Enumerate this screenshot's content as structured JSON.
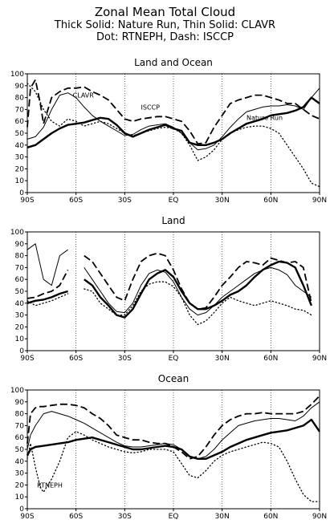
{
  "figure": {
    "title": "Zonal Mean Total Cloud",
    "subtitle1": "Thick Solid: Nature Run, Thin Solid: CLAVR",
    "subtitle2": "Dot: RTNEPH, Dash: ISCCP"
  },
  "chart_data": [
    {
      "type": "line",
      "title": "Land and Ocean",
      "xlim": [
        -90,
        90
      ],
      "ylim": [
        0,
        100
      ],
      "x_ticks": [
        -90,
        -60,
        -30,
        0,
        30,
        60,
        90
      ],
      "x_tick_labels": [
        "90S",
        "60S",
        "30S",
        "EQ",
        "30N",
        "60N",
        "90N"
      ],
      "y_ticks": [
        0,
        10,
        20,
        30,
        40,
        50,
        60,
        70,
        80,
        90,
        100
      ],
      "annotations": [
        {
          "text": "CLAVR",
          "x": -62,
          "y": 80
        },
        {
          "text": "ISCCP",
          "x": -20,
          "y": 70
        },
        {
          "text": "Nature Run",
          "x": 45,
          "y": 61
        }
      ],
      "series": [
        {
          "style": "thick",
          "x": [
            -90,
            -85,
            -80,
            -75,
            -70,
            -65,
            -60,
            -55,
            -50,
            -45,
            -40,
            -35,
            -30,
            -25,
            -20,
            -15,
            -10,
            -5,
            0,
            5,
            10,
            15,
            20,
            25,
            30,
            35,
            40,
            45,
            50,
            55,
            60,
            65,
            70,
            75,
            80,
            85,
            90
          ],
          "y": [
            38,
            40,
            45,
            50,
            54,
            57,
            58,
            59,
            61,
            63,
            62,
            57,
            50,
            47,
            50,
            53,
            55,
            57,
            54,
            52,
            42,
            40,
            40,
            42,
            45,
            50,
            54,
            58,
            60,
            62,
            65,
            66,
            67,
            69,
            72,
            80,
            75
          ]
        },
        {
          "style": "thin",
          "x": [
            -90,
            -85,
            -80,
            -75,
            -70,
            -65,
            -60,
            -55,
            -50,
            -45,
            -40,
            -35,
            -30,
            -25,
            -20,
            -15,
            -10,
            -5,
            0,
            5,
            10,
            15,
            20,
            25,
            30,
            35,
            40,
            45,
            50,
            55,
            60,
            65,
            70,
            75,
            80,
            85,
            90
          ],
          "y": [
            45,
            47,
            55,
            70,
            82,
            84,
            80,
            72,
            65,
            60,
            56,
            52,
            48,
            49,
            53,
            56,
            57,
            58,
            55,
            50,
            42,
            36,
            37,
            40,
            47,
            55,
            62,
            68,
            70,
            72,
            73,
            73,
            74,
            73,
            70,
            80,
            88
          ]
        },
        {
          "style": "dot",
          "x": [
            -90,
            -85,
            -80,
            -75,
            -70,
            -65,
            -60,
            -55,
            -50,
            -45,
            -40,
            -35,
            -30,
            -25,
            -20,
            -15,
            -10,
            -5,
            0,
            5,
            10,
            15,
            20,
            25,
            30,
            35,
            40,
            45,
            50,
            55,
            60,
            65,
            70,
            75,
            80,
            85,
            90
          ],
          "y": [
            92,
            85,
            70,
            60,
            56,
            62,
            60,
            56,
            58,
            60,
            58,
            54,
            50,
            48,
            50,
            52,
            54,
            55,
            54,
            50,
            40,
            27,
            30,
            36,
            45,
            50,
            53,
            55,
            56,
            56,
            54,
            50,
            40,
            30,
            20,
            8,
            5
          ]
        },
        {
          "style": "dash",
          "x": [
            -90,
            -88,
            -85,
            -82,
            -80,
            -75,
            -70,
            -65,
            -60,
            -55,
            -50,
            -45,
            -40,
            -35,
            -30,
            -25,
            -20,
            -15,
            -10,
            -5,
            0,
            5,
            10,
            15,
            20,
            25,
            30,
            35,
            40,
            45,
            50,
            55,
            60,
            65,
            70,
            75,
            80,
            85,
            90
          ],
          "y": [
            55,
            88,
            95,
            75,
            58,
            80,
            85,
            88,
            88,
            89,
            85,
            82,
            78,
            70,
            62,
            60,
            62,
            63,
            64,
            64,
            62,
            60,
            52,
            41,
            42,
            55,
            65,
            75,
            78,
            80,
            82,
            82,
            80,
            78,
            75,
            75,
            70,
            65,
            62
          ]
        }
      ]
    },
    {
      "type": "line",
      "title": "Land",
      "xlim": [
        -90,
        90
      ],
      "ylim": [
        0,
        100
      ],
      "x_ticks": [
        -90,
        -60,
        -30,
        0,
        30,
        60,
        90
      ],
      "x_tick_labels": [
        "90S",
        "60S",
        "30S",
        "EQ",
        "30N",
        "60N",
        "90N"
      ],
      "y_ticks": [
        0,
        10,
        20,
        30,
        40,
        50,
        60,
        70,
        80,
        90,
        100
      ],
      "annotations": [],
      "series": [
        {
          "style": "thick",
          "x": [
            -90,
            -85,
            -80,
            -75,
            -70,
            -65,
            null,
            -55,
            -50,
            -45,
            -40,
            -35,
            -30,
            -25,
            -20,
            -15,
            -10,
            -5,
            0,
            5,
            10,
            15,
            20,
            25,
            30,
            35,
            40,
            45,
            50,
            55,
            60,
            65,
            70,
            75,
            80,
            85
          ],
          "y": [
            40,
            42,
            43,
            45,
            48,
            50,
            null,
            60,
            55,
            45,
            38,
            30,
            28,
            35,
            48,
            60,
            65,
            68,
            62,
            50,
            40,
            35,
            35,
            38,
            42,
            47,
            50,
            55,
            62,
            68,
            72,
            75,
            74,
            70,
            55,
            38
          ]
        },
        {
          "style": "thin",
          "x": [
            -90,
            -85,
            -80,
            -75,
            -70,
            -65,
            null,
            -55,
            -50,
            -45,
            -40,
            -35,
            -30,
            -25,
            -20,
            -15,
            -10,
            -5,
            0,
            5,
            10,
            15,
            20,
            25,
            30,
            35,
            40,
            45,
            50,
            55,
            60,
            65,
            70,
            75,
            80,
            85
          ],
          "y": [
            85,
            90,
            60,
            55,
            80,
            85,
            null,
            70,
            60,
            50,
            40,
            33,
            32,
            40,
            55,
            65,
            68,
            66,
            58,
            45,
            35,
            30,
            32,
            38,
            45,
            50,
            55,
            60,
            65,
            68,
            70,
            68,
            64,
            55,
            50,
            45
          ]
        },
        {
          "style": "dot",
          "x": [
            -90,
            -85,
            -80,
            -75,
            -70,
            -65,
            null,
            -55,
            -50,
            -45,
            -40,
            -35,
            -30,
            -25,
            -20,
            -15,
            -10,
            -5,
            0,
            5,
            10,
            15,
            20,
            25,
            30,
            35,
            40,
            45,
            50,
            55,
            60,
            65,
            70,
            75,
            80,
            85
          ],
          "y": [
            42,
            38,
            40,
            42,
            45,
            48,
            null,
            52,
            50,
            40,
            35,
            30,
            30,
            38,
            50,
            56,
            58,
            58,
            54,
            45,
            30,
            22,
            25,
            32,
            40,
            45,
            42,
            40,
            38,
            40,
            42,
            40,
            38,
            35,
            34,
            30
          ]
        },
        {
          "style": "dash",
          "x": [
            -90,
            -85,
            -80,
            -75,
            -70,
            -65,
            null,
            -55,
            -50,
            -45,
            -40,
            -35,
            -30,
            -25,
            -20,
            -15,
            -10,
            -5,
            0,
            5,
            10,
            15,
            20,
            25,
            30,
            35,
            40,
            45,
            50,
            55,
            60,
            65,
            70,
            75,
            80,
            85
          ],
          "y": [
            44,
            45,
            48,
            50,
            55,
            68,
            null,
            80,
            75,
            65,
            55,
            45,
            42,
            60,
            75,
            80,
            82,
            80,
            68,
            52,
            40,
            35,
            36,
            45,
            55,
            62,
            70,
            75,
            74,
            72,
            78,
            76,
            74,
            75,
            70,
            40
          ]
        }
      ]
    },
    {
      "type": "line",
      "title": "Ocean",
      "xlim": [
        -90,
        90
      ],
      "ylim": [
        0,
        100
      ],
      "x_ticks": [
        -90,
        -60,
        -30,
        0,
        30,
        60,
        90
      ],
      "x_tick_labels": [
        "90S",
        "60S",
        "30S",
        "EQ",
        "30N",
        "60N",
        "90N"
      ],
      "y_ticks": [
        0,
        10,
        20,
        30,
        40,
        50,
        60,
        70,
        80,
        90,
        100
      ],
      "annotations": [
        {
          "text": "RTNEPH",
          "x": -84,
          "y": 18
        }
      ],
      "series": [
        {
          "style": "thick",
          "x": [
            -90,
            -88,
            -85,
            -80,
            -75,
            -70,
            -65,
            -60,
            -55,
            -50,
            -45,
            -40,
            -35,
            -30,
            -25,
            -20,
            -15,
            -10,
            -5,
            0,
            5,
            10,
            15,
            20,
            25,
            30,
            35,
            40,
            45,
            50,
            55,
            60,
            65,
            70,
            75,
            80,
            85,
            90
          ],
          "y": [
            45,
            50,
            52,
            53,
            54,
            55,
            56,
            58,
            59,
            60,
            58,
            56,
            54,
            52,
            50,
            50,
            51,
            52,
            53,
            52,
            50,
            44,
            42,
            42,
            45,
            48,
            52,
            55,
            58,
            60,
            62,
            64,
            65,
            66,
            68,
            70,
            75,
            65
          ]
        },
        {
          "style": "thin",
          "x": [
            -90,
            -88,
            -85,
            -80,
            -75,
            -70,
            -65,
            -60,
            -55,
            -50,
            -45,
            -40,
            -35,
            -30,
            -25,
            -20,
            -15,
            -10,
            -5,
            0,
            5,
            10,
            15,
            20,
            25,
            30,
            35,
            40,
            45,
            50,
            55,
            60,
            65,
            70,
            75,
            80,
            85,
            90
          ],
          "y": [
            50,
            62,
            70,
            80,
            82,
            80,
            78,
            75,
            72,
            68,
            64,
            60,
            56,
            53,
            52,
            52,
            53,
            54,
            55,
            54,
            50,
            44,
            42,
            44,
            50,
            58,
            64,
            70,
            72,
            74,
            75,
            76,
            76,
            75,
            74,
            78,
            85,
            90
          ]
        },
        {
          "style": "dot",
          "x": [
            -90,
            -88,
            -85,
            -82,
            -80,
            -75,
            -70,
            -65,
            -60,
            -55,
            -50,
            -45,
            -40,
            -35,
            -30,
            -25,
            -20,
            -15,
            -10,
            -5,
            0,
            5,
            10,
            15,
            20,
            25,
            30,
            35,
            40,
            45,
            50,
            55,
            60,
            65,
            70,
            75,
            80,
            85,
            90
          ],
          "y": [
            42,
            55,
            35,
            18,
            14,
            25,
            40,
            60,
            65,
            62,
            58,
            55,
            52,
            50,
            48,
            47,
            48,
            50,
            50,
            50,
            48,
            38,
            28,
            26,
            32,
            40,
            45,
            48,
            50,
            52,
            54,
            56,
            55,
            52,
            40,
            25,
            12,
            6,
            6
          ]
        },
        {
          "style": "dash",
          "x": [
            -90,
            -88,
            -85,
            -82,
            -80,
            -75,
            -70,
            -65,
            -60,
            -55,
            -50,
            -45,
            -40,
            -35,
            -30,
            -25,
            -20,
            -15,
            -10,
            -5,
            0,
            5,
            10,
            15,
            20,
            25,
            30,
            35,
            40,
            45,
            50,
            55,
            60,
            65,
            70,
            75,
            80,
            85,
            90
          ],
          "y": [
            55,
            80,
            85,
            86,
            86,
            87,
            88,
            88,
            87,
            85,
            80,
            76,
            70,
            62,
            60,
            58,
            58,
            56,
            55,
            55,
            52,
            48,
            42,
            44,
            52,
            62,
            70,
            75,
            78,
            80,
            80,
            81,
            80,
            80,
            80,
            80,
            82,
            88,
            95
          ]
        }
      ]
    }
  ]
}
